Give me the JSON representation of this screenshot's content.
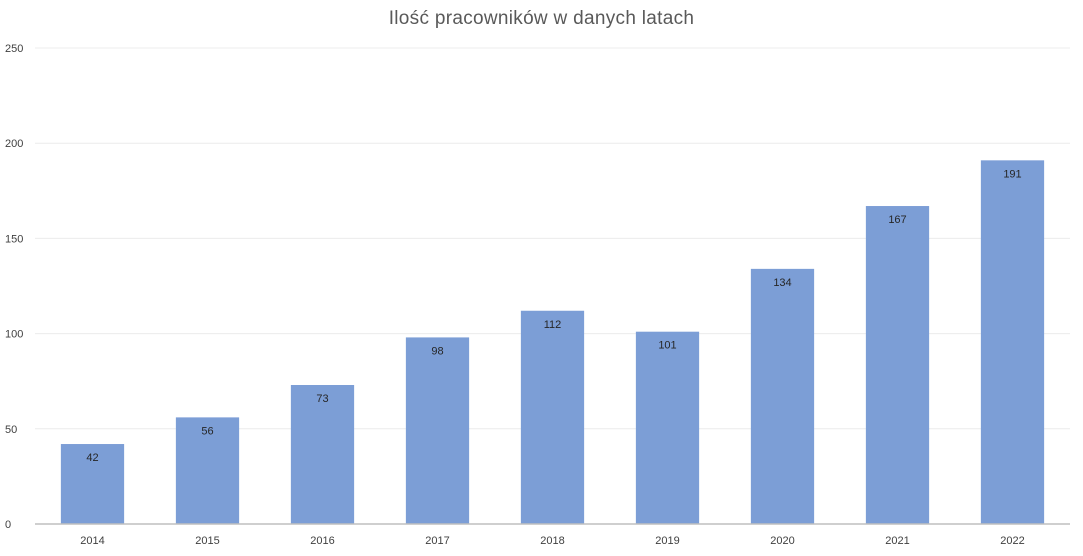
{
  "chart_data": {
    "type": "bar",
    "title": "Ilość pracowników w danych latach",
    "xlabel": "",
    "ylabel": "",
    "categories": [
      "2014",
      "2015",
      "2016",
      "2017",
      "2018",
      "2019",
      "2020",
      "2021",
      "2022"
    ],
    "values": [
      42,
      56,
      73,
      98,
      112,
      101,
      134,
      167,
      191
    ],
    "ylim": [
      0,
      250
    ],
    "yticks": [
      0,
      50,
      100,
      150,
      200,
      250
    ],
    "grid": true,
    "legend": "none",
    "data_labels": true,
    "bar_color": "#7C9ED6",
    "gridline_color": "#ECECEC",
    "axis_color": "#BFBFBF"
  }
}
